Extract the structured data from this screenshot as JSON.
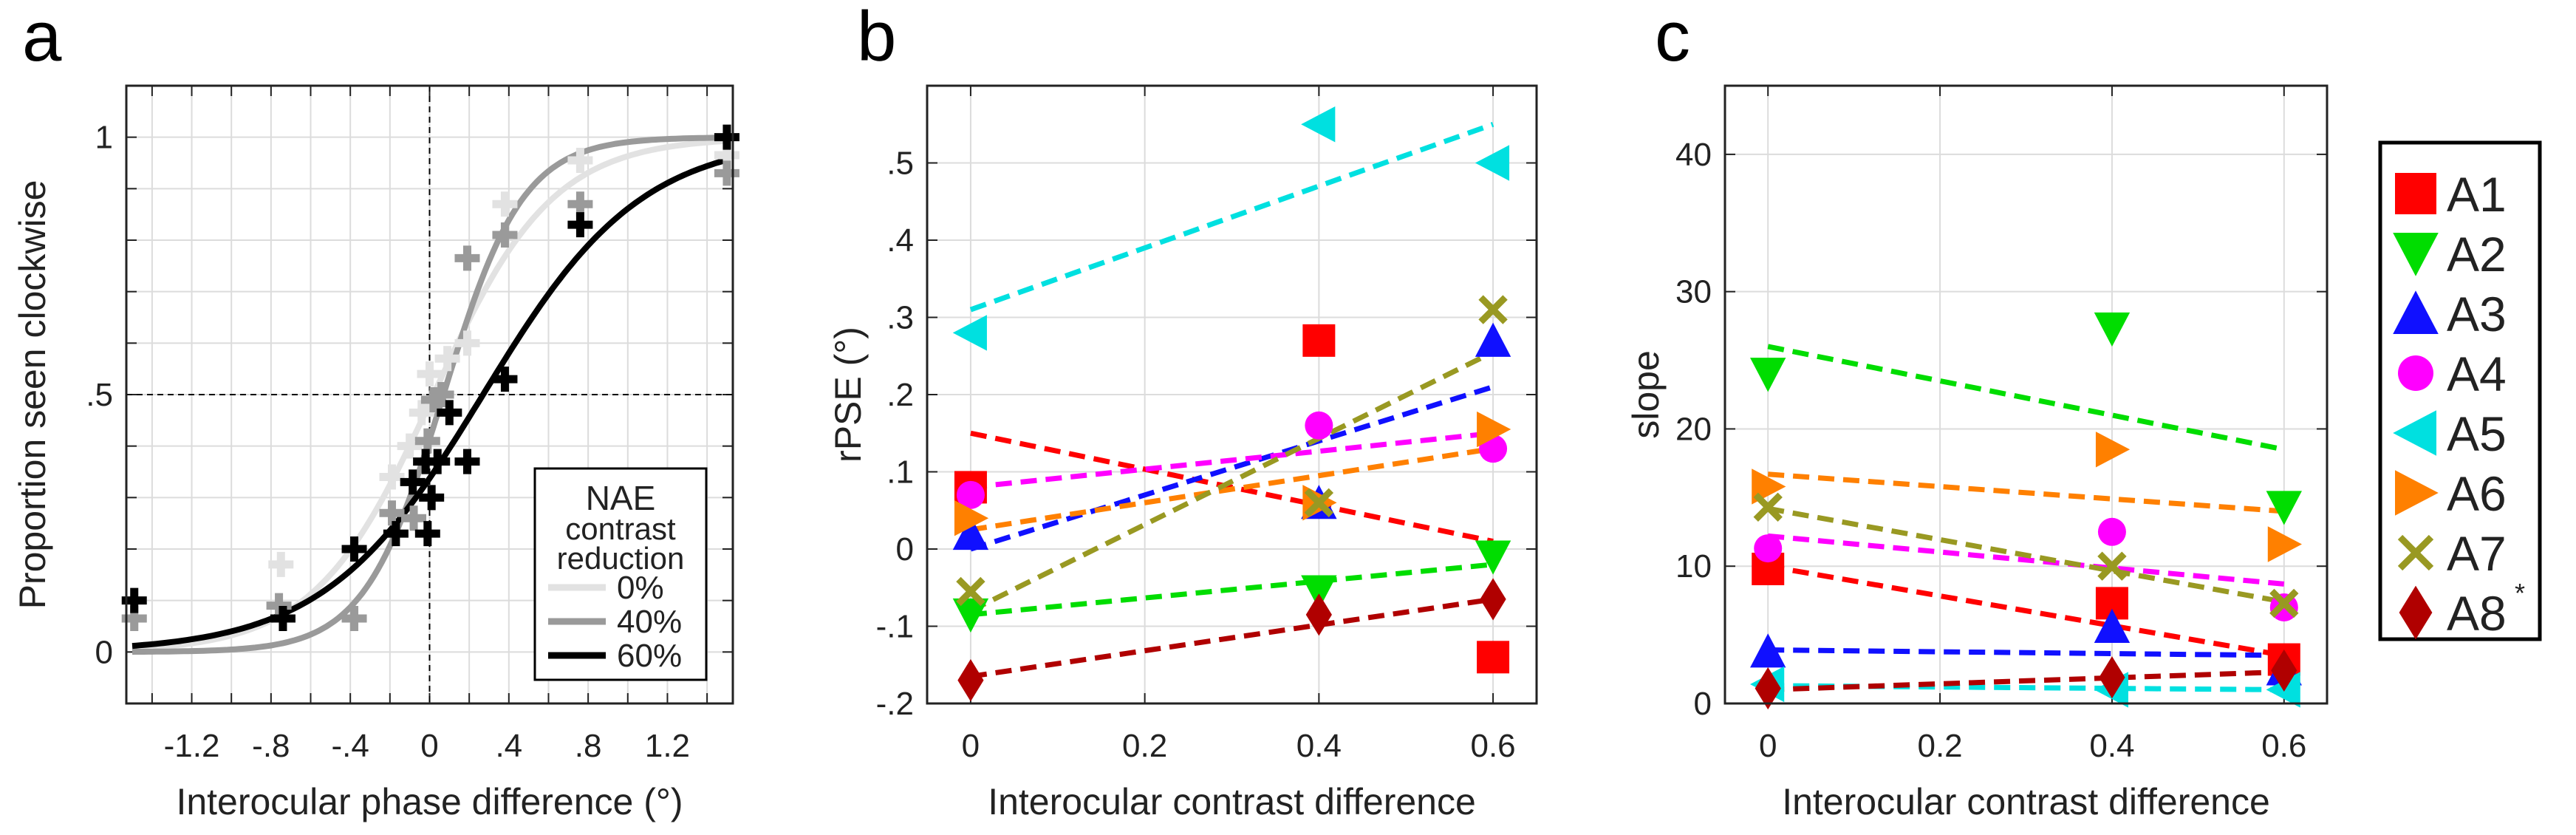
{
  "chart_data": [
    {
      "panel": "a",
      "type": "scatter",
      "xlabel": "Interocular phase difference (°)",
      "ylabel": "Proportion seen clockwise",
      "xlim": [
        -1.53,
        1.53
      ],
      "ylim": [
        -0.1,
        1.1
      ],
      "xticks": [
        -1.2,
        -0.8,
        -0.4,
        0,
        0.4,
        0.8,
        1.2
      ],
      "xtick_labels": [
        "-1.2",
        "-.8",
        "-.4",
        "0",
        ".4",
        ".8",
        "1.2"
      ],
      "yticks": [
        0,
        0.5,
        1
      ],
      "ytick_labels": [
        "0",
        ".5",
        "1"
      ],
      "grid": true,
      "reference_lines": {
        "x": 0,
        "y": 0.5
      },
      "legend": {
        "title": [
          "NAE",
          "contrast",
          "reduction"
        ],
        "placement": "bottom-right"
      },
      "series": [
        {
          "name": "0%",
          "color": "#e2e2e2",
          "fit": {
            "type": "logistic",
            "mu": 0.02,
            "s": 0.3
          },
          "x": [
            -1.49,
            -0.75,
            -0.19,
            -0.1,
            -0.04,
            0.0,
            0.09,
            0.19,
            0.38,
            0.76,
            1.5
          ],
          "y": [
            0.065,
            0.17,
            0.34,
            0.4,
            0.465,
            0.54,
            0.57,
            0.6,
            0.87,
            0.955,
            0.965
          ]
        },
        {
          "name": "40%",
          "color": "#9a9a9a",
          "fit": {
            "type": "logistic",
            "mu": 0.07,
            "s": 0.2
          },
          "x": [
            -1.49,
            -0.76,
            -0.38,
            -0.19,
            -0.08,
            -0.01,
            0.02,
            0.06,
            0.19,
            0.38,
            0.76,
            1.5
          ],
          "y": [
            0.065,
            0.09,
            0.065,
            0.27,
            0.26,
            0.41,
            0.49,
            0.5,
            0.765,
            0.81,
            0.87,
            0.93
          ]
        },
        {
          "name": "60%",
          "color": "#000000",
          "fit": {
            "type": "logistic",
            "mu": 0.27,
            "s": 0.4
          },
          "x": [
            -1.49,
            -0.74,
            -0.38,
            -0.17,
            -0.085,
            -0.01,
            -0.02,
            0.01,
            0.04,
            0.1,
            0.19,
            0.38,
            0.76,
            1.5
          ],
          "y": [
            0.1,
            0.065,
            0.2,
            0.23,
            0.33,
            0.23,
            0.37,
            0.3,
            0.37,
            0.465,
            0.37,
            0.53,
            0.83,
            1.0
          ]
        }
      ]
    },
    {
      "panel": "b",
      "type": "scatter",
      "xlabel": "Interocular contrast difference",
      "ylabel": "rPSE (°)",
      "xlim": [
        -0.05,
        0.65
      ],
      "ylim": [
        -0.2,
        0.6
      ],
      "xticks": [
        0,
        0.2,
        0.4,
        0.6
      ],
      "xtick_labels": [
        "0",
        "0.2",
        "0.4",
        "0.6"
      ],
      "yticks": [
        -0.2,
        -0.1,
        0,
        0.1,
        0.2,
        0.3,
        0.4,
        0.5
      ],
      "ytick_labels": [
        "-.2",
        "-.1",
        "0",
        ".1",
        ".2",
        ".3",
        ".4",
        ".5"
      ],
      "grid": true,
      "x": [
        0,
        0.4,
        0.6
      ],
      "series": [
        {
          "name": "A1",
          "values": [
            0.08,
            0.27,
            -0.14
          ],
          "fit": [
            0.15,
            0.01
          ]
        },
        {
          "name": "A2",
          "values": [
            -0.085,
            -0.055,
            -0.01
          ],
          "fit": [
            -0.085,
            -0.02
          ]
        },
        {
          "name": "A3",
          "values": [
            0.02,
            0.06,
            0.27
          ],
          "fit": [
            0.0,
            0.21
          ]
        },
        {
          "name": "A4",
          "values": [
            0.07,
            0.16,
            0.13
          ],
          "fit": [
            0.08,
            0.15
          ]
        },
        {
          "name": "A5",
          "values": [
            0.28,
            0.55,
            0.5
          ],
          "fit": [
            0.31,
            0.55
          ]
        },
        {
          "name": "A6",
          "values": [
            0.04,
            0.06,
            0.155
          ],
          "fit": [
            0.025,
            0.13
          ]
        },
        {
          "name": "A7",
          "values": [
            -0.055,
            0.06,
            0.31
          ],
          "fit": [
            -0.08,
            0.255
          ]
        },
        {
          "name": "A8",
          "values": [
            -0.17,
            -0.085,
            -0.065
          ],
          "fit": [
            -0.165,
            -0.065
          ]
        }
      ]
    },
    {
      "panel": "c",
      "type": "scatter",
      "xlabel": "Interocular contrast difference",
      "ylabel": "slope",
      "xlim": [
        -0.05,
        0.65
      ],
      "ylim": [
        0,
        45
      ],
      "xticks": [
        0,
        0.2,
        0.4,
        0.6
      ],
      "xtick_labels": [
        "0",
        "0.2",
        "0.4",
        "0.6"
      ],
      "yticks": [
        0,
        10,
        20,
        30,
        40
      ],
      "ytick_labels": [
        "0",
        "10",
        "20",
        "30",
        "40"
      ],
      "grid": true,
      "x": [
        0,
        0.4,
        0.6
      ],
      "legend_placement": "right",
      "series": [
        {
          "name": "A1",
          "values": [
            9.8,
            7.3,
            3.2
          ],
          "fit": [
            10.0,
            3.5
          ]
        },
        {
          "name": "A2",
          "values": [
            24.0,
            27.3,
            14.3
          ],
          "fit": [
            26.0,
            18.5
          ]
        },
        {
          "name": "A3",
          "values": [
            3.8,
            5.6,
            2.5
          ],
          "fit": [
            3.9,
            3.5
          ]
        },
        {
          "name": "A4",
          "values": [
            11.3,
            12.5,
            7.0
          ],
          "fit": [
            12.2,
            8.7
          ]
        },
        {
          "name": "A5",
          "values": [
            1.4,
            1.0,
            1.0
          ],
          "fit": [
            1.3,
            1.0
          ]
        },
        {
          "name": "A6",
          "values": [
            15.8,
            18.5,
            11.6
          ],
          "fit": [
            16.7,
            14.0
          ]
        },
        {
          "name": "A7",
          "values": [
            14.3,
            10.0,
            7.3
          ],
          "fit": [
            14.2,
            7.4
          ]
        },
        {
          "name": "A8",
          "values": [
            1.1,
            1.9,
            2.4
          ],
          "fit": [
            1.0,
            2.3
          ]
        }
      ]
    }
  ],
  "participants": [
    {
      "name": "A1",
      "marker": "square",
      "color": "#ff0000",
      "sup": ""
    },
    {
      "name": "A2",
      "marker": "triangle-down",
      "color": "#00dd00",
      "sup": ""
    },
    {
      "name": "A3",
      "marker": "triangle-up",
      "color": "#1010ff",
      "sup": ""
    },
    {
      "name": "A4",
      "marker": "circle",
      "color": "#ff00ff",
      "sup": ""
    },
    {
      "name": "A5",
      "marker": "triangle-left",
      "color": "#00e0e0",
      "sup": ""
    },
    {
      "name": "A6",
      "marker": "triangle-right",
      "color": "#ff8000",
      "sup": ""
    },
    {
      "name": "A7",
      "marker": "x",
      "color": "#999922",
      "sup": ""
    },
    {
      "name": "A8",
      "marker": "diamond",
      "color": "#b00000",
      "sup": "*"
    }
  ],
  "panel_labels": [
    "a",
    "b",
    "c"
  ]
}
